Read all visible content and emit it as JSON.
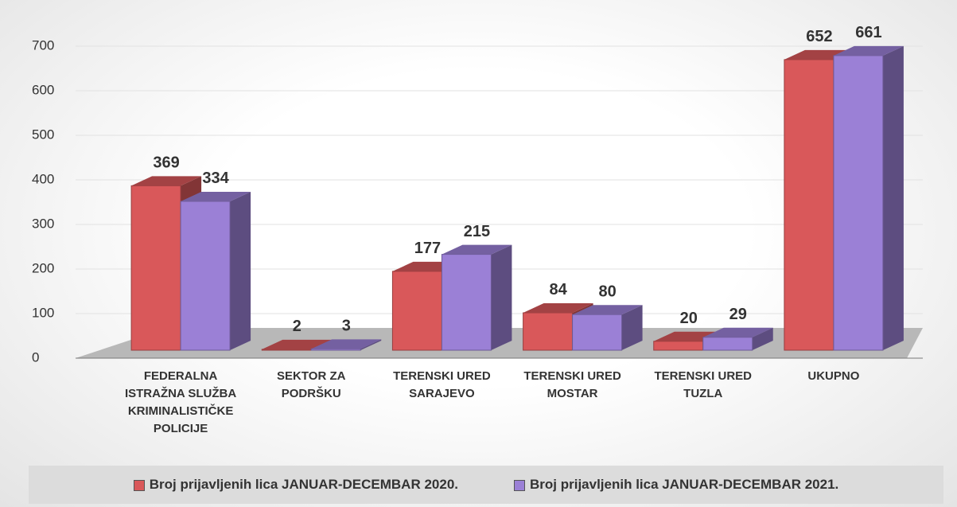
{
  "chart_data": {
    "type": "bar3d",
    "categories": [
      "FEDERALNA ISTRAŽNA SLUŽBA KRIMINALISTIČKE POLICIJE",
      "SEKTOR ZA PODRŠKU",
      "TERENSKI URED SARAJEVO",
      "TERENSKI URED MOSTAR",
      "TERENSKI URED TUZLA",
      "UKUPNO"
    ],
    "series": [
      {
        "name": "Broj prijavljenih lica JANUAR-DECEMBAR 2020.",
        "color": "#d9585a",
        "values": [
          369,
          2,
          177,
          84,
          20,
          652
        ]
      },
      {
        "name": "Broj prijavljenih lica JANUAR-DECEMBAR 2021.",
        "color": "#9b80d6",
        "values": [
          334,
          3,
          215,
          80,
          29,
          661
        ]
      }
    ],
    "ylim": [
      0,
      700
    ],
    "yticks": [
      0,
      100,
      200,
      300,
      400,
      500,
      600,
      700
    ],
    "grid": true,
    "legend": "bottom"
  }
}
